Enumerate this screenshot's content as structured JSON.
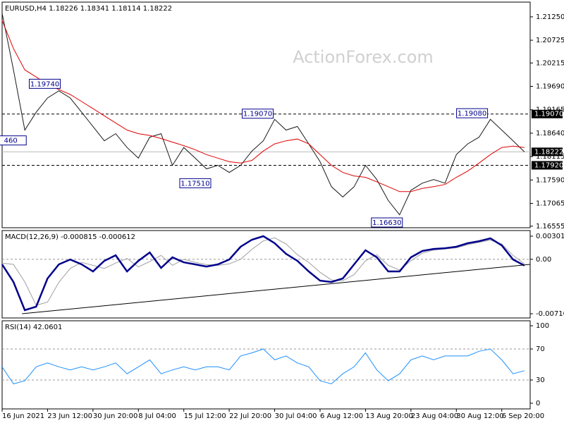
{
  "chart_data": [
    {
      "type": "line",
      "title": "EURUSD,H4 1.18226 1.18341 1.18114 1.18222",
      "watermark": "ActionForex.com",
      "xlim": [
        0,
        372
      ],
      "ylim": [
        1.1652,
        1.2158
      ],
      "yticks": [
        {
          "value": 1.2125,
          "label": "1.21250"
        },
        1.20725,
        1.20215,
        {
          "value": 1.1969,
          "label": "1.19690"
        },
        1.19165,
        {
          "value": 1.1864,
          "label": "1.18640"
        },
        1.18115,
        {
          "value": 1.1759,
          "label": "1.17590"
        },
        1.17065,
        1.16555
      ],
      "x": [
        0,
        8,
        16,
        24,
        32,
        40,
        48,
        56,
        64,
        72,
        80,
        88,
        96,
        104,
        112,
        120,
        128,
        136,
        144,
        152,
        160,
        168,
        176,
        184,
        192,
        200,
        208,
        216,
        224,
        232,
        240,
        248,
        256,
        264,
        272,
        280,
        288,
        296,
        304,
        312,
        320,
        328,
        336,
        344,
        352,
        360,
        368
      ],
      "series": [
        {
          "color": "#1a1a1a",
          "values": [
            1.2133,
            1.2006,
            1.1871,
            1.1911,
            1.1943,
            1.1959,
            1.1943,
            1.1911,
            1.1879,
            1.1847,
            1.1863,
            1.1832,
            1.1808,
            1.1855,
            1.1863,
            1.1792,
            1.1832,
            1.1808,
            1.1784,
            1.1792,
            1.1776,
            1.1792,
            1.1824,
            1.1847,
            1.1895,
            1.1871,
            1.1879,
            1.184,
            1.18,
            1.1744,
            1.1721,
            1.1744,
            1.1792,
            1.176,
            1.1713,
            1.1681,
            1.1736,
            1.1752,
            1.176,
            1.1752,
            1.1816,
            1.184,
            1.1855,
            1.1895,
            1.1871,
            1.1847,
            1.1822
          ]
        },
        {
          "color": "#e00000",
          "values": [
            1.2117,
            1.2054,
            1.2006,
            1.199,
            1.1974,
            1.1962,
            1.1951,
            1.1935,
            1.1919,
            1.1903,
            1.1887,
            1.1871,
            1.1863,
            1.1859,
            1.1852,
            1.1844,
            1.1836,
            1.1827,
            1.1816,
            1.1808,
            1.18,
            1.1797,
            1.1803,
            1.1824,
            1.184,
            1.1847,
            1.1851,
            1.184,
            1.1816,
            1.1792,
            1.1776,
            1.1768,
            1.1765,
            1.1755,
            1.1744,
            1.1733,
            1.1733,
            1.174,
            1.1744,
            1.1749,
            1.1765,
            1.1779,
            1.1797,
            1.1816,
            1.1832,
            1.1835,
            1.1832
          ]
        }
      ],
      "markers": [
        {
          "value": 1.1907,
          "label": "1.19070",
          "style": "dashed"
        },
        {
          "value": 1.18222,
          "label": "1.18222",
          "style": "solid"
        },
        {
          "value": 1.1792,
          "label": "1.17920",
          "style": "dashed"
        }
      ],
      "annotations": [
        {
          "x": 17,
          "value": 1.1847,
          "label": "460"
        },
        {
          "x": 41,
          "value": 1.1974,
          "label": "1.19740"
        },
        {
          "x": 147,
          "value": 1.1751,
          "label": "1.17510"
        },
        {
          "x": 191,
          "value": 1.1907,
          "label": "1.19070"
        },
        {
          "x": 282,
          "value": 1.1663,
          "label": "1.16630"
        },
        {
          "x": 342,
          "value": 1.1908,
          "label": "1.19080"
        }
      ]
    },
    {
      "type": "line",
      "title": "MACD(12,26,9) -0.000815 -0.000612",
      "xlim": [
        0,
        372
      ],
      "ylim": [
        -0.00766,
        0.00375
      ],
      "yticks": [
        0.003012,
        {
          "value": 0,
          "label": "0.00"
        },
        -0.007109
      ],
      "levels": [
        0
      ],
      "x": [
        0,
        8,
        16,
        24,
        32,
        40,
        48,
        56,
        64,
        72,
        80,
        88,
        96,
        104,
        112,
        120,
        128,
        136,
        144,
        152,
        160,
        168,
        176,
        184,
        192,
        200,
        208,
        216,
        224,
        232,
        240,
        248,
        256,
        264,
        272,
        280,
        288,
        296,
        304,
        312,
        320,
        328,
        336,
        344,
        352,
        360,
        368
      ],
      "series": [
        {
          "color": "#a0a0a0",
          "width": 1,
          "values": [
            -0.0005,
            -0.00067,
            -0.00297,
            -0.006,
            -0.0056,
            -0.003,
            -0.0012,
            -0.0004,
            -0.0008,
            -0.0012,
            -0.0005,
            0.0001,
            -0.001,
            -0.0003,
            0.0005,
            -0.0008,
            0,
            -0.0004,
            -0.0007,
            -0.0008,
            -0.0006,
            0,
            0.0013,
            0.0024,
            0.0028,
            0.002,
            0.0006,
            -0.0004,
            -0.0017,
            -0.0027,
            -0.0028,
            -0.002,
            -0.0002,
            0.0006,
            -0.0008,
            -0.0014,
            -0.0002,
            0.0008,
            0.0012,
            0.00135,
            0.0015,
            0.0019,
            0.0022,
            0.0025,
            0.002,
            0.0005,
            -0.00061
          ]
        },
        {
          "color": "#00008b",
          "width": 2.5,
          "values": [
            -0.00067,
            -0.00297,
            -0.00665,
            -0.00619,
            -0.00251,
            -0.00067,
            -3e-05,
            -0.00067,
            -0.00159,
            -0.00021,
            0.00052,
            -0.00159,
            -0.00021,
            0.00089,
            -0.00113,
            0.00025,
            -0.0004,
            -0.00067,
            -0.00095,
            -0.00067,
            -3e-05,
            0.00163,
            0.00255,
            0.00301,
            0.00209,
            0.00071,
            -0.00021,
            -0.00159,
            -0.00279,
            -0.00297,
            -0.00251,
            -0.00067,
            0.00117,
            0.00025,
            -0.00159,
            -0.00159,
            0.00025,
            0.00108,
            0.00135,
            0.00144,
            0.00163,
            0.00209,
            0.00236,
            0.00273,
            0.00181,
            -3e-05,
            -0.00082
          ]
        },
        {
          "color": "#000000",
          "width": 1,
          "x": [
            14,
            372
          ],
          "values": [
            -0.00711,
            -0.00067
          ]
        }
      ]
    },
    {
      "type": "line",
      "title": "RSI(14) 42.0601",
      "xlim": [
        0,
        372
      ],
      "ylim": [
        -7.3,
        106.4
      ],
      "yticks": [
        100,
        70,
        30,
        0
      ],
      "levels": [
        70,
        30
      ],
      "xticks": [
        {
          "value": 0,
          "label": "16 Jun 2021"
        },
        {
          "value": 32,
          "label": "23 Jun 12:00"
        },
        {
          "value": 64,
          "label": "30 Jun 20:00"
        },
        {
          "value": 96,
          "label": "8 Jul 04:00"
        },
        {
          "value": 128,
          "label": "15 Jul 12:00"
        },
        {
          "value": 160,
          "label": "22 Jul 20:00"
        },
        {
          "value": 192,
          "label": "30 Jul 04:00"
        },
        {
          "value": 224,
          "label": "6 Aug 12:00"
        },
        {
          "value": 256,
          "label": "13 Aug 20:00"
        },
        {
          "value": 288,
          "label": "23 Aug 04:00"
        },
        {
          "value": 320,
          "label": "30 Aug 12:00"
        },
        {
          "value": 352,
          "label": "6 Sep 20:00"
        }
      ],
      "x": [
        0,
        8,
        16,
        24,
        32,
        40,
        48,
        56,
        64,
        72,
        80,
        88,
        96,
        104,
        112,
        120,
        128,
        136,
        144,
        152,
        160,
        168,
        176,
        184,
        192,
        200,
        208,
        216,
        224,
        232,
        240,
        248,
        256,
        264,
        272,
        280,
        288,
        296,
        304,
        312,
        320,
        328,
        336,
        344,
        352,
        360,
        368
      ],
      "series": [
        {
          "color": "#1e90ff",
          "width": 1,
          "values": [
            47,
            25,
            29,
            47,
            52,
            47,
            43,
            47,
            43,
            47,
            52,
            38,
            47,
            56,
            38,
            43,
            47,
            43,
            47,
            47,
            43,
            61,
            65,
            70,
            56,
            61,
            52,
            47,
            29,
            25,
            38,
            47,
            65,
            43,
            29,
            38,
            56,
            61,
            56,
            61,
            61,
            61,
            67,
            70,
            56,
            38,
            42
          ]
        }
      ]
    }
  ]
}
